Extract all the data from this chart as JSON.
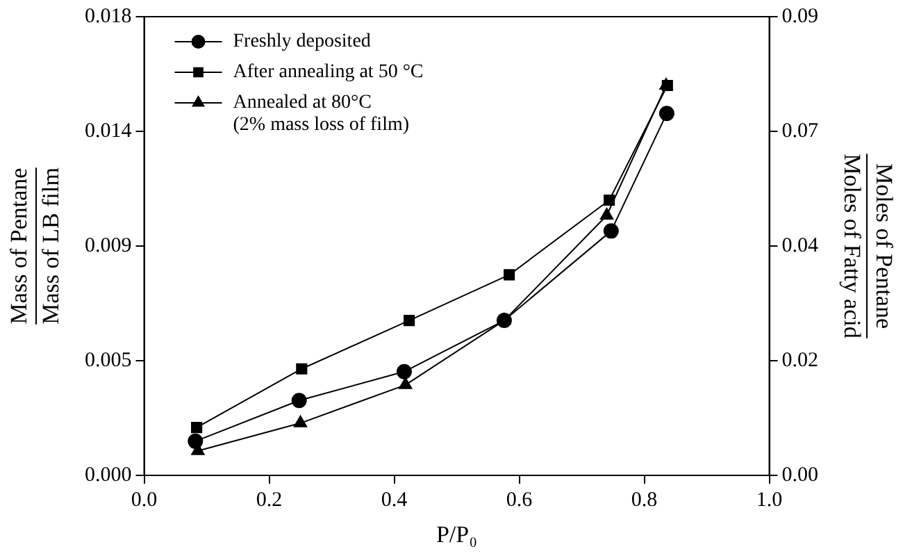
{
  "chart_data": {
    "type": "line",
    "xlabel": "P/P₀",
    "ylabel": [
      "Mass of Pentane",
      "Mass of LB film"
    ],
    "y2label": [
      "Moles of Pentane",
      "Moles of Fatty acid"
    ],
    "xlim": [
      0,
      1
    ],
    "xticks": [
      {
        "value": 0,
        "label": "0.0"
      },
      {
        "value": 0.2,
        "label": "0.2"
      },
      {
        "value": 0.4,
        "label": "0.4"
      },
      {
        "value": 0.6,
        "label": "0.6"
      },
      {
        "value": 0.8,
        "label": "0.8"
      },
      {
        "value": 1,
        "label": "1.0"
      }
    ],
    "ylim": [
      0,
      0.018
    ],
    "yticks": [
      {
        "value": 0,
        "label": "0.000"
      },
      {
        "value": 0.0045,
        "label": "0.005"
      },
      {
        "value": 0.009,
        "label": "0.009"
      },
      {
        "value": 0.0135,
        "label": "0.014"
      },
      {
        "value": 0.018,
        "label": "0.018"
      }
    ],
    "y2lim": [
      0,
      0.09
    ],
    "y2ticks": [
      {
        "value": 0,
        "label": "0.00"
      },
      {
        "value": 0.0225,
        "label": "0.02"
      },
      {
        "value": 0.045,
        "label": "0.04"
      },
      {
        "value": 0.0675,
        "label": "0.07"
      },
      {
        "value": 0.09,
        "label": "0.09"
      }
    ],
    "grid": false,
    "legend": "top left",
    "line_style": "solid",
    "series": [
      {
        "name": "Freshly deposited",
        "color": "#000000",
        "marker": "circle",
        "x": [
          0.082,
          0.248,
          0.416,
          0.576,
          0.747,
          0.836
        ],
        "values": [
          0.00134,
          0.00294,
          0.00407,
          0.00608,
          0.00959,
          0.0142
        ]
      },
      {
        "name": "After annealing at 50 °C",
        "color": "#000000",
        "marker": "square",
        "x": [
          0.084,
          0.252,
          0.424,
          0.584,
          0.744,
          0.837
        ],
        "values": [
          0.00188,
          0.00418,
          0.00608,
          0.00787,
          0.0108,
          0.0153
        ]
      },
      {
        "name": "Annealed at 80°C\n(2% mass loss of film)",
        "color": "#000000",
        "marker": "triangle",
        "x": [
          0.086,
          0.25,
          0.418,
          0.576,
          0.74,
          0.835
        ],
        "values": [
          0.00096,
          0.00205,
          0.00355,
          0.00608,
          0.0102,
          0.0153
        ]
      }
    ]
  }
}
